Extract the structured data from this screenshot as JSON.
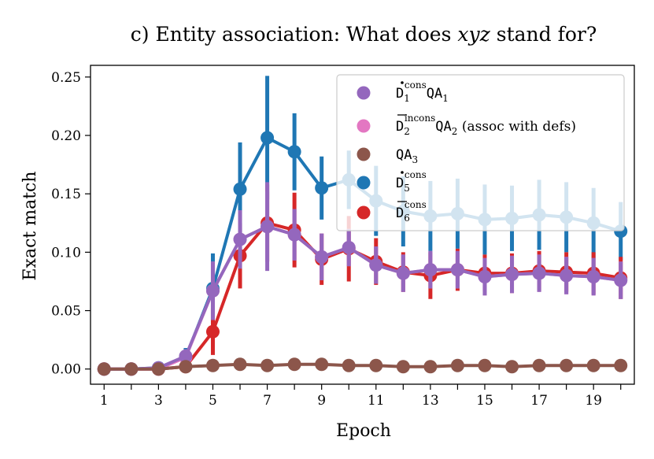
{
  "chart_data": {
    "type": "line",
    "title": "c) Entity association: What does xyz stand for?",
    "title_parts": {
      "prefix": "c) Entity association: What does ",
      "italic": "xyz",
      "suffix": " stand for?"
    },
    "xlabel": "Epoch",
    "ylabel": "Exact match",
    "xlim": [
      0.5,
      20.5
    ],
    "ylim": [
      -0.013,
      0.26
    ],
    "xticks": [
      1,
      3,
      5,
      7,
      9,
      11,
      13,
      15,
      17,
      19
    ],
    "xminor": [
      2,
      4,
      6,
      8,
      10,
      12,
      14,
      16,
      18,
      20
    ],
    "yticks": [
      0.0,
      0.05,
      0.1,
      0.15,
      0.2,
      0.25
    ],
    "ytick_labels": [
      "0.00",
      "0.05",
      "0.10",
      "0.15",
      "0.20",
      "0.25"
    ],
    "legend_position": "top-right",
    "x": [
      1,
      2,
      3,
      4,
      5,
      6,
      7,
      8,
      9,
      10,
      11,
      12,
      13,
      14,
      15,
      16,
      17,
      18,
      19,
      20
    ],
    "series": [
      {
        "name": "D5 cons",
        "color": "#1f77b4",
        "legend": {
          "base": "D",
          "mark": "dot",
          "sub": "5",
          "sup": "cons",
          "after_mono": "",
          "after_sub": "",
          "after_text": ""
        },
        "values": [
          0.0,
          0.0,
          0.001,
          0.01,
          0.069,
          0.154,
          0.198,
          0.186,
          0.155,
          0.162,
          0.144,
          0.135,
          0.131,
          0.133,
          0.128,
          0.129,
          0.132,
          0.13,
          0.125,
          0.118
        ],
        "errors": [
          0.0,
          0.0,
          0.002,
          0.008,
          0.03,
          0.04,
          0.053,
          0.033,
          0.027,
          0.025,
          0.03,
          0.03,
          0.03,
          0.03,
          0.03,
          0.028,
          0.03,
          0.03,
          0.03,
          0.025
        ]
      },
      {
        "name": "D6 cons",
        "color": "#d62728",
        "legend": {
          "base": "D",
          "mark": "bar",
          "sub": "6",
          "sup": "cons",
          "after_mono": "",
          "after_sub": "",
          "after_text": ""
        },
        "values": [
          0.0,
          0.0,
          0.0,
          0.002,
          0.032,
          0.097,
          0.125,
          0.119,
          0.094,
          0.103,
          0.092,
          0.083,
          0.08,
          0.085,
          0.082,
          0.082,
          0.084,
          0.083,
          0.082,
          0.078
        ],
        "errors": [
          0.0,
          0.0,
          0.001,
          0.003,
          0.02,
          0.028,
          0.033,
          0.032,
          0.022,
          0.028,
          0.02,
          0.017,
          0.02,
          0.018,
          0.016,
          0.017,
          0.017,
          0.017,
          0.018,
          0.018
        ]
      },
      {
        "name": "D2 incons QA2 (assoc with defs)",
        "color": "#e377c2",
        "legend": {
          "base": "D",
          "mark": "bar",
          "sub": "2",
          "sup": "incons",
          "after_mono": "QA",
          "after_sub": "2",
          "after_text": " (assoc with defs)"
        },
        "values": [
          0.0,
          0.0,
          0.0,
          0.01,
          0.067,
          0.111,
          0.122,
          0.115,
          0.096,
          0.104,
          0.089,
          0.082,
          0.085,
          0.085,
          0.079,
          0.081,
          0.082,
          0.08,
          0.079,
          0.076
        ],
        "errors": [
          0.0,
          0.0,
          0.002,
          0.006,
          0.025,
          0.025,
          0.03,
          0.022,
          0.02,
          0.016,
          0.016,
          0.016,
          0.016,
          0.016,
          0.016,
          0.016,
          0.016,
          0.016,
          0.016,
          0.016
        ]
      },
      {
        "name": "D1 cons QA1",
        "color": "#9467bd",
        "legend": {
          "base": "D",
          "mark": "dot",
          "sub": "1",
          "sup": "cons",
          "after_mono": "QA",
          "after_sub": "1",
          "after_text": ""
        },
        "values": [
          0.0,
          0.0,
          0.001,
          0.011,
          0.067,
          0.111,
          0.122,
          0.115,
          0.096,
          0.104,
          0.089,
          0.082,
          0.085,
          0.085,
          0.079,
          0.081,
          0.082,
          0.08,
          0.079,
          0.076
        ],
        "errors": [
          0.0,
          0.0,
          0.002,
          0.006,
          0.025,
          0.025,
          0.038,
          0.022,
          0.02,
          0.016,
          0.016,
          0.016,
          0.016,
          0.016,
          0.016,
          0.016,
          0.016,
          0.016,
          0.016,
          0.016
        ]
      },
      {
        "name": "QA3",
        "color": "#8c564b",
        "legend": {
          "base": "",
          "mark": "none",
          "sub": "",
          "sup": "",
          "after_mono": "QA",
          "after_sub": "3",
          "after_text": ""
        },
        "values": [
          0.0,
          0.0,
          0.0,
          0.002,
          0.003,
          0.004,
          0.003,
          0.004,
          0.004,
          0.003,
          0.003,
          0.002,
          0.002,
          0.003,
          0.003,
          0.002,
          0.003,
          0.003,
          0.003,
          0.003
        ],
        "errors": [
          0.0,
          0.0,
          0.0,
          0.001,
          0.001,
          0.001,
          0.001,
          0.001,
          0.001,
          0.001,
          0.001,
          0.001,
          0.001,
          0.001,
          0.001,
          0.001,
          0.001,
          0.001,
          0.001,
          0.001
        ]
      }
    ],
    "legend_order": [
      "D1 cons QA1",
      "D2 incons QA2 (assoc with defs)",
      "QA3",
      "D5 cons",
      "D6 cons"
    ]
  }
}
